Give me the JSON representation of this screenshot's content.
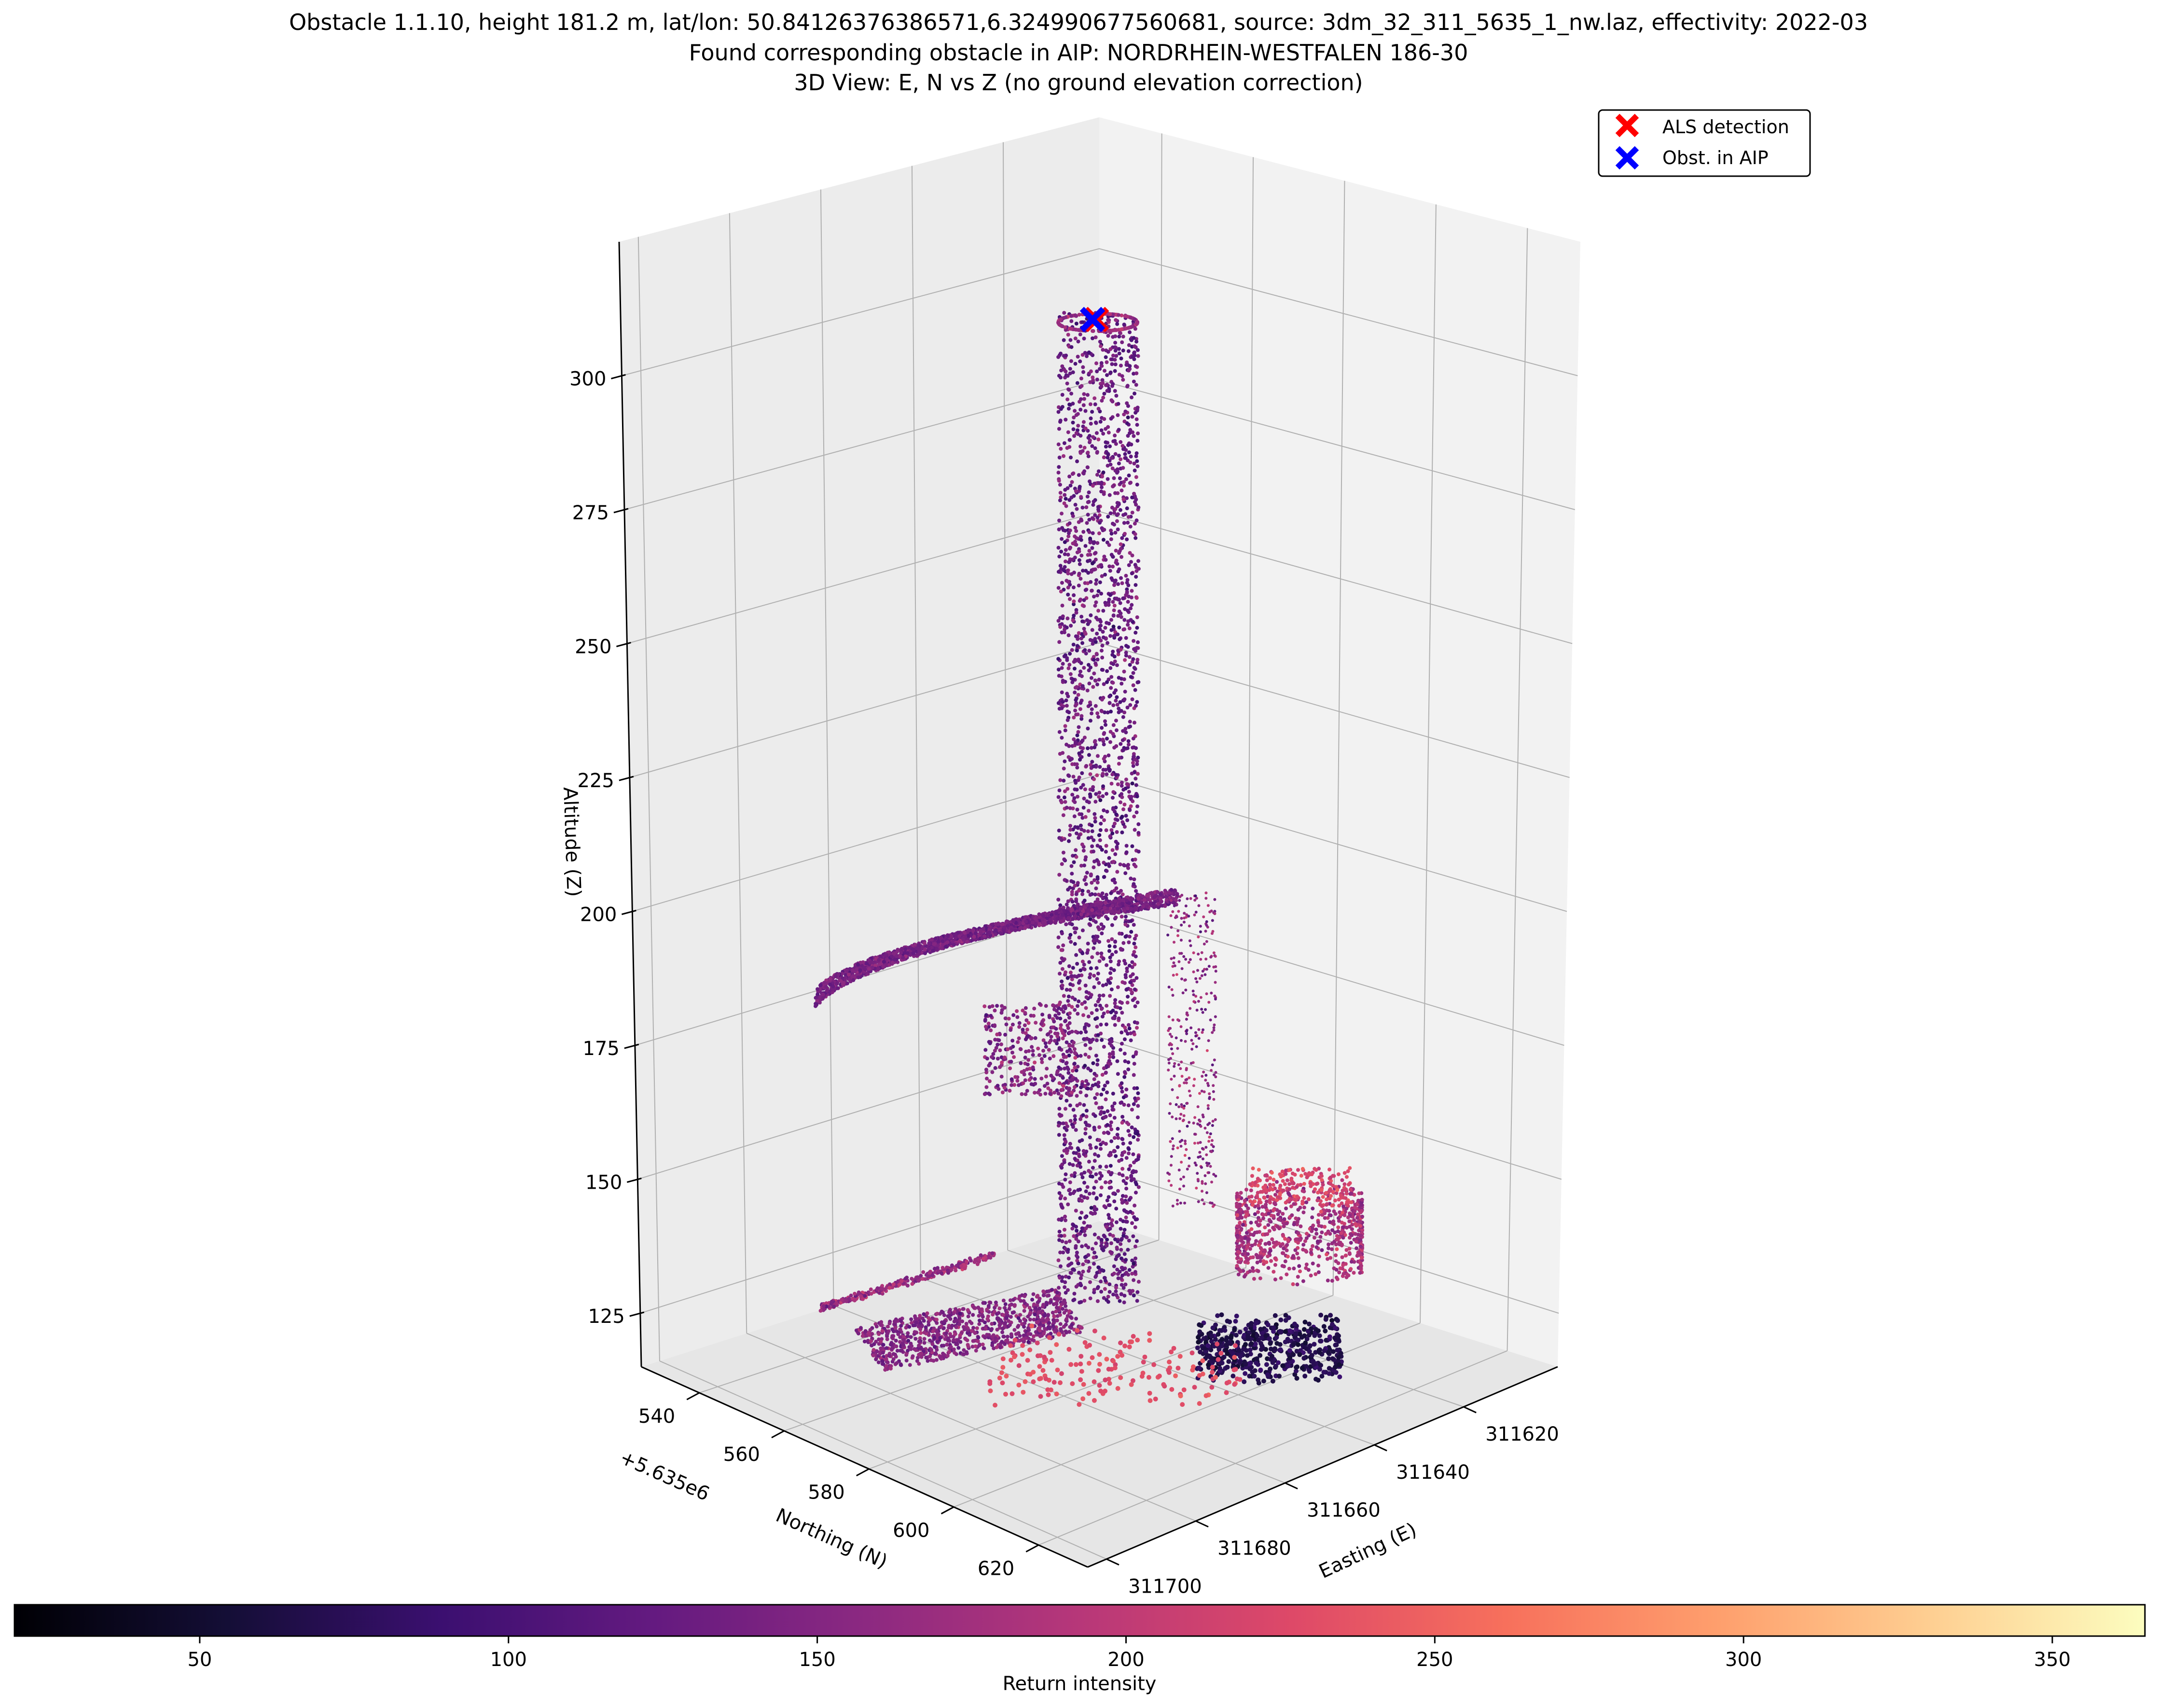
{
  "chart_data": {
    "type": "scatter3d",
    "title_lines": [
      "Obstacle 1.1.10, height 181.2 m, lat/lon: 50.84126376386571,6.324990677560681, source: 3dm_32_311_5635_1_nw.laz, effectivity: 2022-03",
      "Found corresponding obstacle in AIP: NORDRHEIN-WESTFALEN 186-30",
      "3D View: E, N vs Z (no ground elevation correction)"
    ],
    "z_axis": {
      "label": "Altitude (Z)",
      "ticks": [
        "125",
        "150",
        "175",
        "200",
        "225",
        "250",
        "275",
        "300"
      ],
      "range": [
        115,
        325
      ]
    },
    "northing_axis": {
      "label": "Northing (N)",
      "offset_label": "+5.635e6",
      "ticks": [
        "540",
        "560",
        "580",
        "600",
        "620"
      ]
    },
    "easting_axis": {
      "label": "Easting (E)",
      "ticks": [
        "311620",
        "311640",
        "311660",
        "311680",
        "311700"
      ]
    },
    "legend": {
      "placement": "top-right",
      "entries": [
        {
          "label": "ALS detection",
          "marker": "x",
          "color": "#ff0000"
        },
        {
          "label": "Obst. in AIP",
          "marker": "x",
          "color": "#0000ff"
        }
      ]
    },
    "colorbar": {
      "label": "Return intensity",
      "colormap": "magma",
      "range": [
        20,
        365
      ],
      "ticks": [
        "50",
        "100",
        "150",
        "200",
        "250",
        "300",
        "350"
      ],
      "orientation": "horizontal"
    },
    "markers": [
      {
        "name": "ALS detection",
        "easting": 311640,
        "northing": 5635585,
        "altitude": 309.5,
        "color": "#ff0000"
      },
      {
        "name": "Obst. in AIP",
        "easting": 311640,
        "northing": 5635585,
        "altitude": 309.5,
        "color": "#0000ff"
      }
    ],
    "point_cloud_structures": [
      {
        "kind": "chimney-cylinder",
        "altitude_range": [
          128,
          309
        ],
        "intensity_mean": 130
      },
      {
        "kind": "platform-deck",
        "altitude_range": [
          180,
          200
        ],
        "intensity_mean": 140
      },
      {
        "kind": "small-cylinder-tank",
        "altitude_range": [
          130,
          160
        ],
        "intensity_mean": 180
      },
      {
        "kind": "low-buildings",
        "altitude_range": [
          118,
          140
        ],
        "intensity_mean": 150
      },
      {
        "kind": "ground-returns",
        "altitude_range": [
          115,
          125
        ],
        "intensity_mean": 230
      }
    ]
  }
}
